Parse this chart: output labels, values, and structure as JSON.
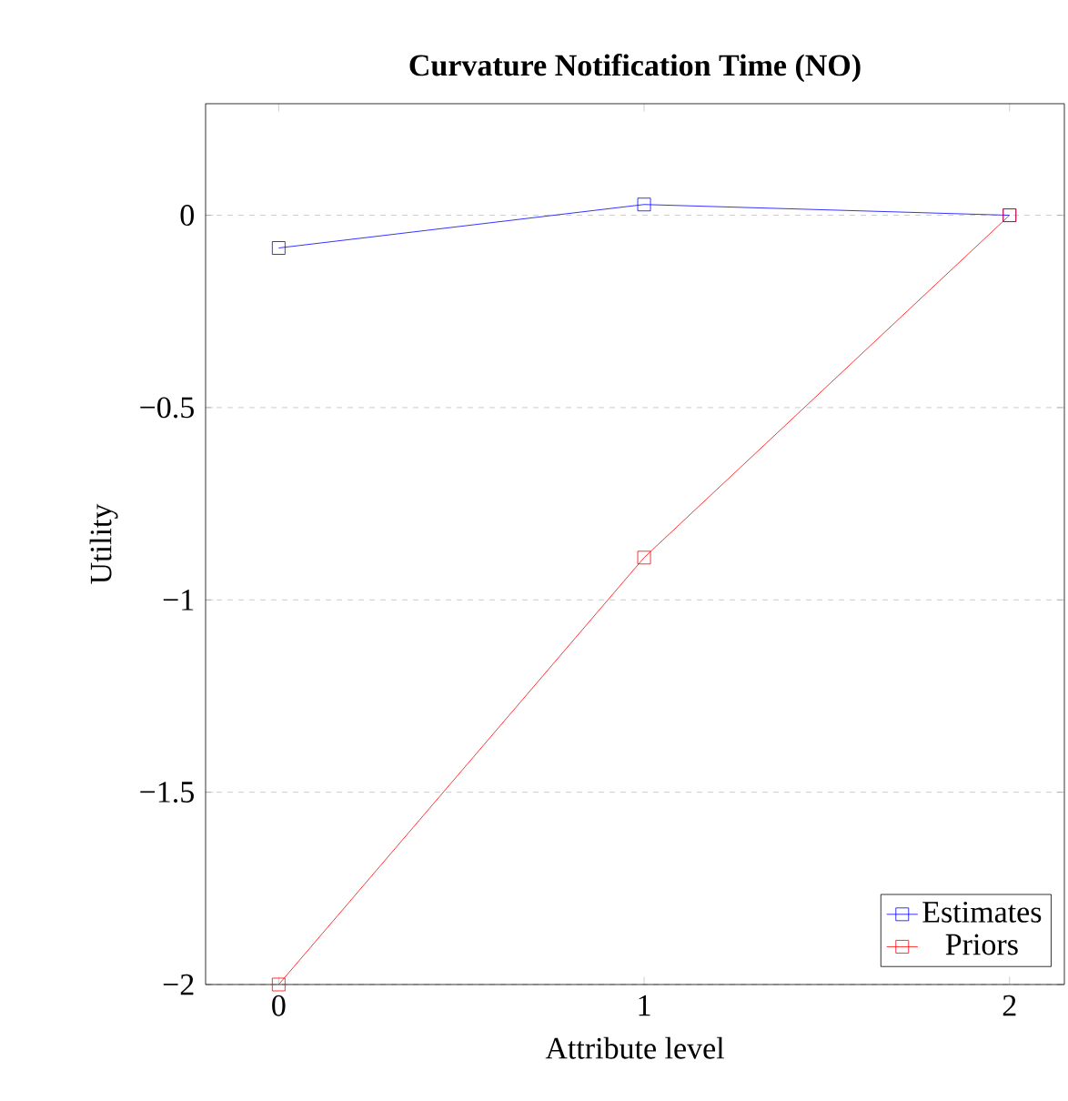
{
  "chart_data": {
    "type": "line",
    "title": "Curvature Notification Time (NO)",
    "xlabel": "Attribute level",
    "ylabel": "Utility",
    "x": [
      0,
      1,
      2
    ],
    "series": [
      {
        "name": "Estimates",
        "color": "#0000ff",
        "values": [
          -0.085,
          0.028,
          0
        ]
      },
      {
        "name": "Priors",
        "color": "#ff0000",
        "values": [
          -2,
          -0.89,
          0
        ]
      }
    ],
    "xlim": [
      -0.2,
      2.15
    ],
    "ylim": [
      -2,
      0.29
    ],
    "xticks": [
      0,
      1,
      2
    ],
    "yticks": [
      {
        "value": -2,
        "label": "−2"
      },
      {
        "value": -1.5,
        "label": "−1.5"
      },
      {
        "value": -1,
        "label": "−1"
      },
      {
        "value": -0.5,
        "label": "−0.5"
      },
      0
    ],
    "grid": "y",
    "legend": "bottom right",
    "marker": "square",
    "line_style": "solid"
  }
}
